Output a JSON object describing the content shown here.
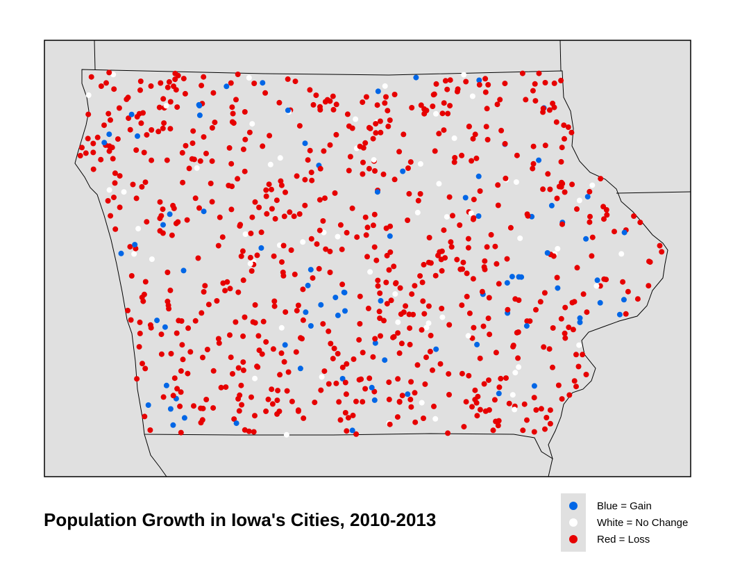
{
  "title": "Population Growth in Iowa's Cities, 2010-2013",
  "colors": {
    "panel_bg": "#e0e0e0",
    "gain": "#0066e6",
    "no_change": "#ffffff",
    "loss": "#e60000"
  },
  "legend": {
    "items": [
      {
        "key": "gain",
        "label": "Blue = Gain"
      },
      {
        "key": "no_change",
        "label": "White = No Change"
      },
      {
        "key": "loss",
        "label": "Red = Loss"
      }
    ]
  }
}
